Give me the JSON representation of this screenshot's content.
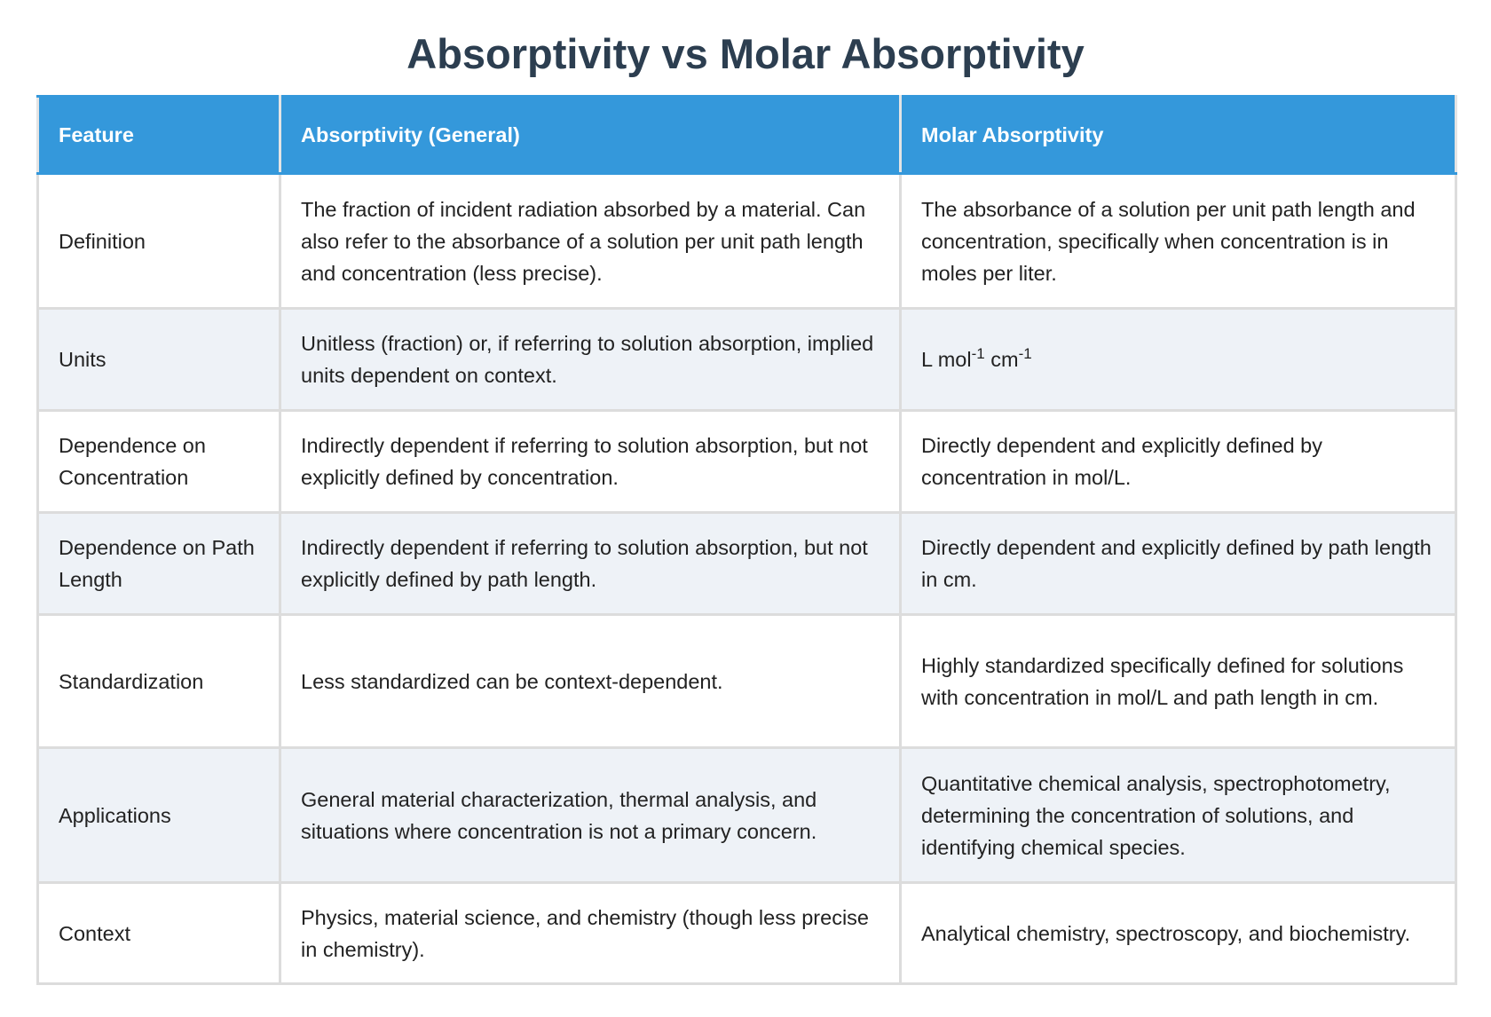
{
  "title": "Absorptivity vs Molar Absorptivity",
  "table": {
    "header": [
      "Feature",
      "Absorptivity (General)",
      "Molar Absorptivity"
    ],
    "rows": [
      [
        "Definition",
        "The fraction of incident radiation absorbed by a material. Can also refer to the absorbance of a solution per unit path length and concentration (less precise).",
        "The absorbance of a solution per unit path length and concentration, specifically when concentration is in moles per liter."
      ],
      [
        "Units",
        "Unitless (fraction) or, if referring to solution absorption, implied units dependent on context.",
        [
          "L mol",
          "-1",
          " cm",
          "-1"
        ]
      ],
      [
        "Dependence on Concentration",
        "Indirectly dependent if referring to solution absorption, but not explicitly defined by concentration.",
        "Directly dependent and explicitly defined by concentration in mol/L."
      ],
      [
        "Dependence on Path Length",
        "Indirectly dependent if referring to solution absorption, but not explicitly defined by path length.",
        "Directly dependent and explicitly defined by path length in cm."
      ],
      [
        "Standardization",
        "Less standardized can be context-dependent.",
        "Highly standardized specifically defined for solutions with concentration in mol/L and path length in cm."
      ],
      [
        "Applications",
        "General material characterization, thermal analysis, and situations where concentration is not a primary concern.",
        "Quantitative chemical analysis, spectrophotometry, determining the concentration of solutions, and identifying chemical species."
      ],
      [
        "Context",
        "Physics, material science, and chemistry (though less precise in chemistry).",
        "Analytical chemistry, spectroscopy, and biochemistry."
      ]
    ]
  }
}
